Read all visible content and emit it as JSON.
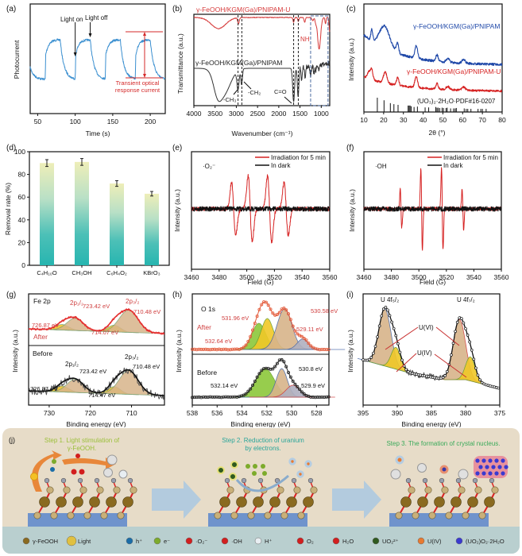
{
  "figure": {
    "panels": [
      "(a)",
      "(b)",
      "(c)",
      "(d)",
      "(e)",
      "(f)",
      "(g)",
      "(h)",
      "(i)",
      "(j)"
    ]
  },
  "chart_data": [
    {
      "id": "a",
      "type": "line",
      "title": "",
      "xlabel": "Time (s)",
      "ylabel": "Photocurrent",
      "xlim": [
        40,
        220
      ],
      "xticks": [
        50,
        100,
        150,
        200
      ],
      "light_on_times": [
        60,
        100,
        140,
        180
      ],
      "light_off_times": [
        80,
        120,
        160,
        200
      ],
      "series": [
        {
          "name": "Photocurrent",
          "color": "#3a8fd0"
        }
      ],
      "annotations": {
        "light_on": "Light on",
        "light_off": "Light off",
        "transient": "Transient optical",
        "transient2": "response current"
      },
      "colors": {
        "annot": "#d42a2a"
      }
    },
    {
      "id": "b",
      "type": "line",
      "xlabel": "Wavenumber (cm⁻¹)",
      "ylabel": "Transmittance (a.u.)",
      "xlim": [
        4000,
        800
      ],
      "xticks": [
        4000,
        3500,
        3000,
        2500,
        2000,
        1500,
        1000
      ],
      "series": [
        {
          "name": "γ-FeOOH/KGM(Ga)/PNIPAM-U",
          "color": "#d63a3a"
        },
        {
          "name": "γ-FeOOH/KGM(Ga)/PNIPAM",
          "color": "#333333"
        }
      ],
      "dashed_lines_cm": [
        2960,
        2870,
        1650,
        1540
      ],
      "annotations": {
        "ch3": "-CH₃",
        "ch2": "-CH₂",
        "co": "C=O",
        "nh": "NH"
      }
    },
    {
      "id": "c",
      "type": "line",
      "xlabel": "2θ (°)",
      "ylabel": "Intensity (a.u.)",
      "xlim": [
        10,
        80
      ],
      "xticks": [
        10,
        20,
        30,
        40,
        50,
        60,
        70,
        80
      ],
      "series": [
        {
          "name": "γ-FeOOH/KGM(Ga)/PNIPAM",
          "color": "#1f48a8"
        },
        {
          "name": "γ-FeOOH/KGM(Ga)/PNIPAM-U",
          "color": "#d62222"
        }
      ],
      "reference": {
        "name": "(UO₃)₂·2H₂O·PDF#16-0207",
        "peaks": [
          16.8,
          20.2,
          23.4,
          25.2,
          27.3,
          32.4,
          32.9,
          33.4,
          34.0,
          35.4,
          37.1,
          41.0,
          42.8,
          46.4,
          47.0,
          47.6,
          48.4,
          49.6,
          50.3,
          51.6,
          52.2,
          53.9,
          55.4,
          56.2,
          56.8,
          60.8,
          61.8,
          62.6,
          64.2,
          67.8,
          69.2,
          70.0,
          71.9
        ],
        "heights": [
          1.0,
          0.82,
          0.62,
          0.55,
          0.5,
          0.45,
          0.45,
          0.45,
          0.4,
          0.35,
          0.38,
          0.32,
          0.32,
          0.35,
          0.3,
          0.3,
          0.28,
          0.3,
          0.28,
          0.28,
          0.3,
          0.25,
          0.25,
          0.25,
          0.28,
          0.25,
          0.22,
          0.22,
          0.22,
          0.22,
          0.22,
          0.22,
          0.22
        ]
      }
    },
    {
      "id": "d",
      "type": "bar",
      "xlabel": "",
      "ylabel": "Removal rate (%)",
      "ylim": [
        0,
        100
      ],
      "yticks": [
        0,
        20,
        40,
        60,
        80,
        100
      ],
      "categories": [
        "C₄H₁₀O",
        "CH₃OH",
        "C₆H₄O₂",
        "KBrO₃"
      ],
      "values": [
        90,
        91,
        72,
        63
      ],
      "errors": [
        3,
        3,
        2.5,
        2
      ],
      "colors": {
        "top": "#eeeeb8",
        "bottom": "#27b5b0"
      }
    },
    {
      "id": "e",
      "type": "line",
      "xlabel": "Field (G)",
      "ylabel": "Intensity (a.u.)",
      "xlim": [
        3460,
        3560
      ],
      "xticks": [
        3460,
        3480,
        3500,
        3520,
        3540,
        3560
      ],
      "species": "·O₂⁻",
      "series": [
        {
          "name": "Irradiation for 5 min",
          "color": "#d62222"
        },
        {
          "name": "In dark",
          "color": "#111111"
        }
      ],
      "peak_centers": [
        3490.5,
        3502.5,
        3516.5,
        3528.5
      ],
      "amplitudes": [
        0.6,
        0.75,
        0.75,
        0.6
      ]
    },
    {
      "id": "f",
      "type": "line",
      "xlabel": "Field (G)",
      "ylabel": "Intensity (a.u.)",
      "xlim": [
        3460,
        3560
      ],
      "xticks": [
        3460,
        3480,
        3500,
        3520,
        3540,
        3560
      ],
      "species": "·OH",
      "series": [
        {
          "name": "Irradiation for 5 min",
          "color": "#d62222"
        },
        {
          "name": "In dark",
          "color": "#111111"
        }
      ],
      "peak_centers": [
        3487,
        3502,
        3517,
        3532
      ],
      "amplitudes": [
        0.45,
        0.95,
        0.95,
        0.45
      ]
    },
    {
      "id": "g",
      "type": "line",
      "xlabel": "Binding energy (eV)",
      "ylabel": "Intensity (a.u.)",
      "xlim": [
        735,
        702
      ],
      "xticks": [
        730,
        720,
        710
      ],
      "element": "Fe 2p",
      "after": {
        "label": "After",
        "peaks": [
          "726.87 eV",
          "723.42 eV",
          "714.07 eV",
          "710.48 eV"
        ],
        "p12": "2p₁/₂",
        "p32": "2p₃/₂"
      },
      "before": {
        "label": "Before",
        "peaks": [
          "726.87 eV",
          "723.42 eV",
          "714.47 eV",
          "710.48 eV"
        ],
        "p12": "2p₁/₂",
        "p32": "2p₃/₂"
      }
    },
    {
      "id": "h",
      "type": "line",
      "xlabel": "Binding energy (eV)",
      "ylabel": "Intensity (a.u.)",
      "xlim": [
        538,
        527
      ],
      "xticks": [
        538,
        536,
        534,
        532,
        530,
        528
      ],
      "element": "O 1s",
      "after": {
        "label": "After",
        "peaks": [
          "531.96 eV",
          "532.64 eV",
          "530.58 eV",
          "529.11 eV"
        ]
      },
      "before": {
        "label": "Before",
        "peaks": [
          "532.14 eV",
          "530.8 eV",
          "529.9 eV"
        ]
      }
    },
    {
      "id": "i",
      "type": "line",
      "xlabel": "Binding energy (eV)",
      "ylabel": "Intensity (a.u.)",
      "xlim": [
        395,
        375
      ],
      "xticks": [
        395,
        390,
        385,
        380,
        375
      ],
      "labels": {
        "f52": "U 4f₅/₂",
        "f72": "U 4f₇/₂",
        "u6": "U(VI)",
        "u4": "U(IV)"
      },
      "peak_positions_eV": {
        "U_VI_4f5/2": 391.8,
        "U_IV_4f5/2": 390.2,
        "U_VI_4f7/2": 380.9,
        "U_IV_4f7/2": 379.3
      }
    }
  ],
  "scheme": {
    "label": "(j)",
    "steps": [
      {
        "text": "Step 1. Light stimulation of",
        "text2": "γ-FeOOH.",
        "color": "#9bbf3a"
      },
      {
        "text": "Step 2. Reduction of uranium",
        "text2": "by electrons.",
        "color": "#2aa59a"
      },
      {
        "text": "Step 3. The formation of crystal nucleus.",
        "text2": "",
        "color": "#3aaa5a"
      }
    ],
    "legend": [
      {
        "icon": "feooh-icon",
        "label": "γ-FeOOH"
      },
      {
        "icon": "light-icon",
        "label": "Light"
      },
      {
        "icon": "hole-icon",
        "label": "h⁺"
      },
      {
        "icon": "electron-icon",
        "label": "e⁻"
      },
      {
        "icon": "superoxide-icon",
        "label": "·O₂⁻"
      },
      {
        "icon": "hydroxyl-icon",
        "label": "·OH"
      },
      {
        "icon": "proton-icon",
        "label": "H⁺"
      },
      {
        "icon": "oxygen-icon",
        "label": "O₂"
      },
      {
        "icon": "water-icon",
        "label": "H₂O"
      },
      {
        "icon": "uranyl-icon",
        "label": "UO₂²⁺"
      },
      {
        "icon": "u4-icon",
        "label": "U(IV)"
      },
      {
        "icon": "crystal-icon",
        "label": "(UO₂)O₂·2H₂O"
      }
    ]
  }
}
